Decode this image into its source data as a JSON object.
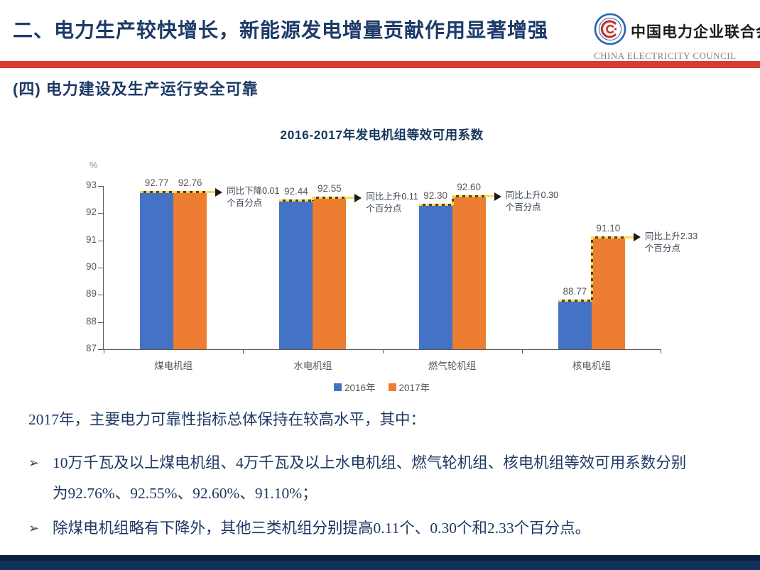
{
  "header": {
    "title": "二、电力生产较快增长，新能源发电增量贡献作用显著增强",
    "logo": {
      "org_cn": "中国电力企业联合会",
      "org_en": "CHINA ELECTRICITY COUNCIL"
    }
  },
  "section": {
    "heading": "(四)  电力建设及生产运行安全可靠"
  },
  "chart_data": {
    "type": "bar",
    "title": "2016-2017年发电机组等效可用系数",
    "unit_label": "%",
    "categories": [
      "煤电机组",
      "水电机组",
      "燃气轮机组",
      "核电机组"
    ],
    "series": [
      {
        "name": "2016年",
        "color": "#4472C4",
        "values": [
          92.77,
          92.44,
          92.3,
          88.77
        ]
      },
      {
        "name": "2017年",
        "color": "#ED7D31",
        "values": [
          92.76,
          92.55,
          92.6,
          91.1
        ]
      }
    ],
    "ylim": [
      87,
      93
    ],
    "yticks": [
      93,
      92,
      91,
      90,
      89,
      88,
      87
    ],
    "grid": false,
    "legend_position": "bottom",
    "annotations": [
      {
        "category": "煤电机组",
        "text": "同比下降0.01个百分点"
      },
      {
        "category": "水电机组",
        "text": "同比上升0.11个百分点"
      },
      {
        "category": "燃气轮机组",
        "text": "同比上升0.30个百分点"
      },
      {
        "category": "核电机组",
        "text": "同比上升2.33个百分点"
      }
    ]
  },
  "body": {
    "intro": "2017年，主要电力可靠性指标总体保持在较高水平，其中：",
    "bullet_marker": "➢",
    "bullets": [
      "10万千瓦及以上煤电机组、4万千瓦及以上水电机组、燃气轮机组、核电机组等效可用系数分别为92.76%、92.55%、92.60%、91.10%；",
      "除煤电机组略有下降外，其他三类机组分别提高0.11个、0.30个和2.33个百分点。"
    ]
  },
  "colors": {
    "accent_red": "#D93B33",
    "title_navy": "#1D3A68",
    "footer_navy": "#133158",
    "bar_2016": "#4472C4",
    "bar_2017": "#ED7D31",
    "arrow_yellow": "#FFD84D",
    "axis_gray": "#595959"
  }
}
